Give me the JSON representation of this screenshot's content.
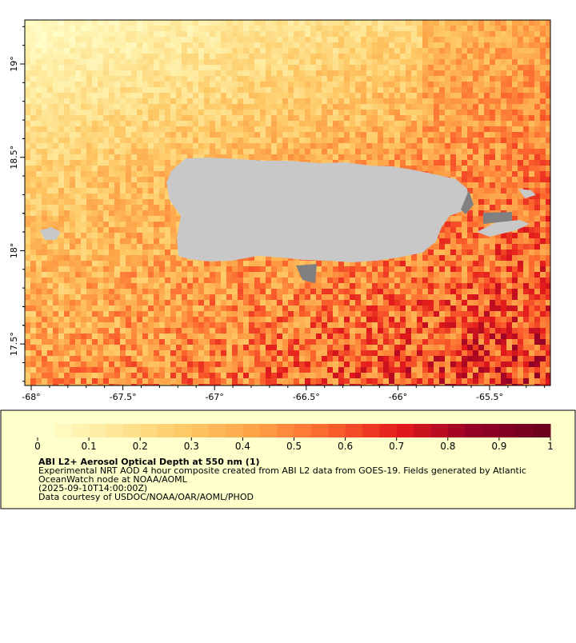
{
  "map": {
    "x_ticks": [
      "-68°",
      "-67.5°",
      "-67°",
      "-66.5°",
      "-66°",
      "-65.5°"
    ],
    "y_ticks": [
      "19°",
      "18.5°",
      "18°",
      "17.5°"
    ]
  },
  "colorbar": {
    "ticks": [
      "0",
      "0.1",
      "0.2",
      "0.3",
      "0.4",
      "0.5",
      "0.6",
      "0.7",
      "0.8",
      "0.9",
      "1"
    ]
  },
  "legend": {
    "title": "ABI L2+ Aerosol Optical Depth at 550 nm (1)",
    "lines": [
      "Experimental NRT AOD 4 hour composite created from ABI L2 data from GOES-19. Fields generated by Atlantic",
      "OceanWatch node at NOAA/AOML",
      "(2025-09-10T14:00:00Z)",
      "Data courtesy of USDOC/NOAA/OAR/AOML/PHOD"
    ]
  }
}
